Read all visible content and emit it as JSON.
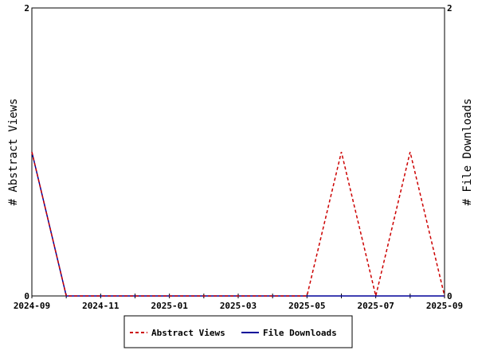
{
  "chart_data": {
    "type": "line",
    "title": "",
    "xlabel": "",
    "ylabel": "# Abstract Views",
    "y2label": "# File Downloads",
    "x": [
      "2024-09",
      "2024-10",
      "2024-11",
      "2024-12",
      "2025-01",
      "2025-02",
      "2025-03",
      "2025-04",
      "2025-05",
      "2025-06",
      "2025-07",
      "2025-08",
      "2025-09"
    ],
    "x_tick_labels": [
      "2024-09",
      "2024-11",
      "2025-01",
      "2025-03",
      "2025-05",
      "2025-07",
      "2025-09"
    ],
    "ylim": [
      0,
      2
    ],
    "y2lim": [
      0,
      2
    ],
    "y_tick_labels": [
      "0",
      "2"
    ],
    "y2_tick_labels": [
      "0",
      "2"
    ],
    "grid": false,
    "legend_position": "bottom",
    "series": [
      {
        "name": "Abstract Views",
        "axis": "left",
        "color": "#cc0000",
        "style": "dashed",
        "values": [
          1,
          0,
          0,
          0,
          0,
          0,
          0,
          0,
          0,
          1,
          0,
          1,
          0
        ]
      },
      {
        "name": "File Downloads",
        "axis": "right",
        "color": "#000099",
        "style": "solid",
        "values": [
          1,
          0,
          0,
          0,
          0,
          0,
          0,
          0,
          0,
          0,
          0,
          0,
          0
        ]
      }
    ]
  }
}
